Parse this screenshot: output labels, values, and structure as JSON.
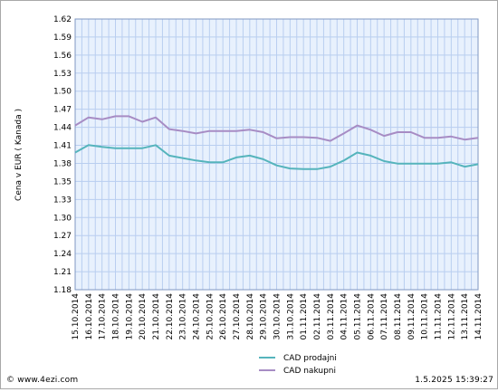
{
  "footer": {
    "source": "© www.4ezi.com",
    "timestamp": "1.5.2025  15:39:27"
  },
  "chart_data": {
    "type": "line",
    "title": "",
    "xlabel": "",
    "ylabel": "Cena v EUR ( Kanada )",
    "ylim": [
      1.18,
      1.62
    ],
    "yticks": [
      "1.62",
      "1.59",
      "1.56",
      "1.53",
      "1.50",
      "1.47",
      "1.44",
      "1.41",
      "1.38",
      "1.35",
      "1.33",
      "1.30",
      "1.27",
      "1.24",
      "1.21",
      "1.18"
    ],
    "grid": true,
    "legend_position": "bottom-center",
    "x": [
      "15.10.2014",
      "16.10.2014",
      "17.10.2014",
      "18.10.2014",
      "19.10.2014",
      "20.10.2014",
      "21.10.2014",
      "22.10.2014",
      "23.10.2014",
      "24.10.2014",
      "25.10.2014",
      "26.10.2014",
      "27.10.2014",
      "28.10.2014",
      "29.10.2014",
      "30.10.2014",
      "31.10.2014",
      "01.11.2014",
      "02.11.2014",
      "03.11.2014",
      "04.11.2014",
      "05.11.2014",
      "06.11.2014",
      "07.11.2014",
      "08.11.2014",
      "09.11.2014",
      "10.11.2014",
      "11.11.2014",
      "12.11.2014",
      "13.11.2014",
      "14.11.2014"
    ],
    "series": [
      {
        "name": "CAD prodajni",
        "color": "#55b4bc",
        "values": [
          1.403,
          1.415,
          1.412,
          1.41,
          1.41,
          1.41,
          1.415,
          1.398,
          1.394,
          1.39,
          1.387,
          1.387,
          1.395,
          1.398,
          1.392,
          1.382,
          1.377,
          1.376,
          1.376,
          1.38,
          1.39,
          1.403,
          1.398,
          1.389,
          1.385,
          1.385,
          1.385,
          1.385,
          1.387,
          1.38,
          1.384
        ]
      },
      {
        "name": "CAD nakupni",
        "color": "#a78cc4",
        "values": [
          1.447,
          1.46,
          1.457,
          1.462,
          1.462,
          1.453,
          1.46,
          1.441,
          1.438,
          1.434,
          1.438,
          1.438,
          1.438,
          1.44,
          1.436,
          1.426,
          1.428,
          1.428,
          1.427,
          1.422,
          1.434,
          1.447,
          1.44,
          1.43,
          1.436,
          1.436,
          1.427,
          1.427,
          1.429,
          1.424,
          1.427
        ]
      }
    ]
  }
}
